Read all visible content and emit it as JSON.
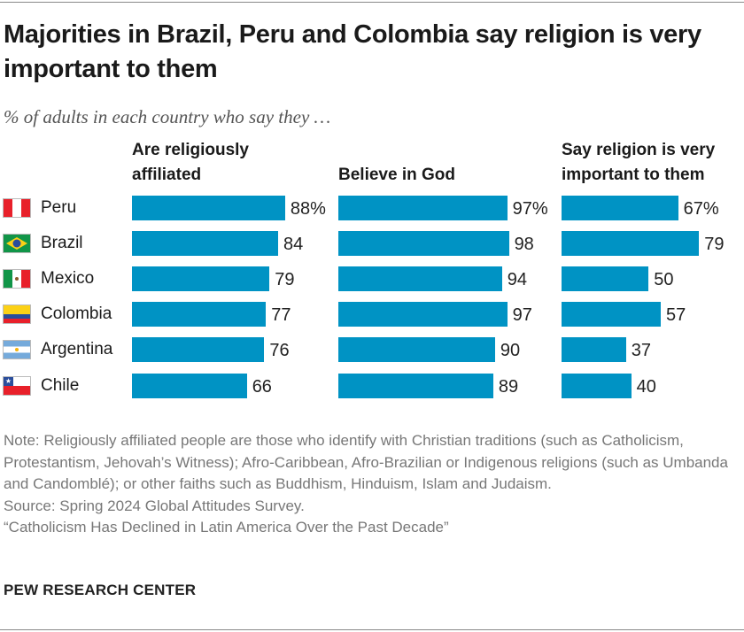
{
  "title": "Majorities in Brazil, Peru and Colombia say religion is very important to them",
  "subtitle": "% of adults in each country who say they …",
  "chart_data": {
    "type": "bar",
    "orientation": "horizontal",
    "categories": [
      "Peru",
      "Brazil",
      "Mexico",
      "Colombia",
      "Argentina",
      "Chile"
    ],
    "series": [
      {
        "name": "Are religiously affiliated",
        "values": [
          88,
          84,
          79,
          77,
          76,
          66
        ]
      },
      {
        "name": "Believe in God",
        "values": [
          97,
          98,
          94,
          97,
          90,
          89
        ]
      },
      {
        "name": "Say religion is very important to them",
        "values": [
          67,
          79,
          50,
          57,
          37,
          40
        ]
      }
    ],
    "value_suffix_first_row": "%",
    "xlim": [
      0,
      100
    ],
    "grid": false,
    "bar_color": "#0093c4"
  },
  "notes": [
    "Note: Religiously affiliated people are those who identify with Christian traditions (such as Catholicism, Protestantism, Jehovah’s Witness); Afro-Caribbean, Afro-Brazilian or Indigenous religions (such as Umbanda and Candomblé); or other faiths such as Buddhism, Hinduism, Islam and Judaism.",
    "Source: Spring 2024 Global Attitudes Survey.",
    "“Catholicism Has Declined in Latin America Over the Past Decade”"
  ],
  "brand": "PEW RESEARCH CENTER"
}
